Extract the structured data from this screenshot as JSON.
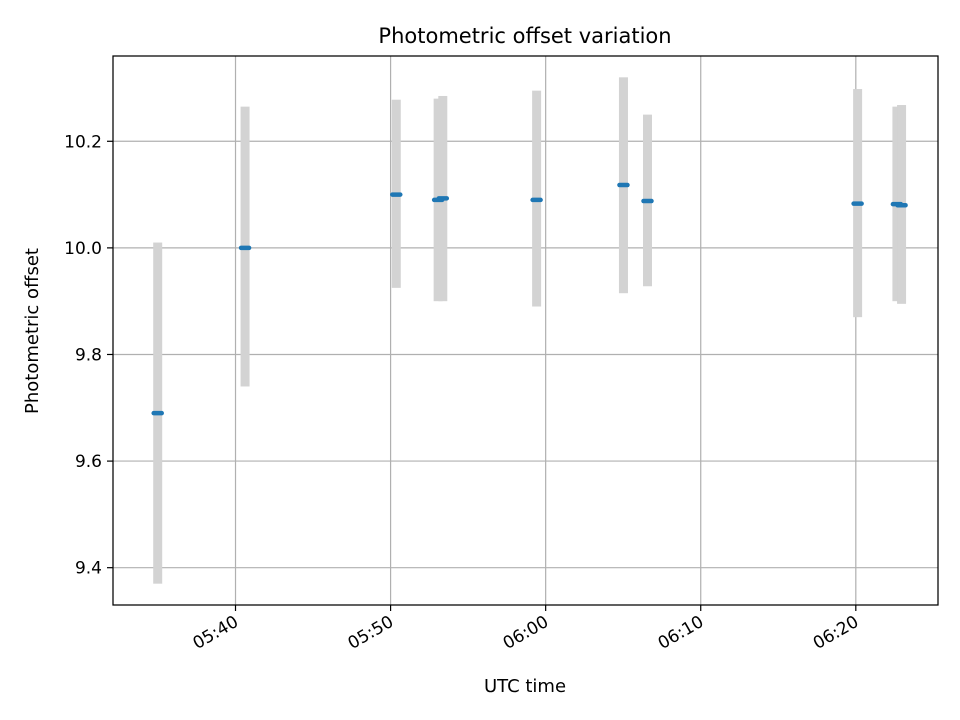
{
  "chart_data": {
    "type": "scatter",
    "title": "Photometric offset variation",
    "xlabel": "UTC time",
    "ylabel": "Photometric offset",
    "x_ticks": [
      "05:40",
      "05:50",
      "06:00",
      "06:10",
      "06:20"
    ],
    "x_tick_minutes": [
      340,
      350,
      360,
      370,
      380
    ],
    "xlim_minutes": [
      332.1,
      385.3
    ],
    "y_ticks": [
      "9.4",
      "9.6",
      "9.8",
      "10.0",
      "10.2"
    ],
    "y_tick_values": [
      9.4,
      9.6,
      9.8,
      10.0,
      10.2
    ],
    "ylim": [
      9.33,
      10.36
    ],
    "grid": true,
    "colors": {
      "point": "#1f77b4",
      "errorbar": "#d3d3d3",
      "grid": "#b0b0b0"
    },
    "series": [
      {
        "points": [
          {
            "time": "05:34:59",
            "y": 9.69,
            "low": 9.37,
            "high": 10.01
          },
          {
            "time": "05:40:37",
            "y": 10.0,
            "low": 9.74,
            "high": 10.265
          },
          {
            "time": "05:50:22",
            "y": 10.1,
            "low": 9.925,
            "high": 10.278
          },
          {
            "time": "05:53:04",
            "y": 10.09,
            "low": 9.9,
            "high": 10.28
          },
          {
            "time": "05:53:22",
            "y": 10.093,
            "low": 9.9,
            "high": 10.285
          },
          {
            "time": "05:59:25",
            "y": 10.09,
            "low": 9.89,
            "high": 10.295
          },
          {
            "time": "06:05:01",
            "y": 10.118,
            "low": 9.915,
            "high": 10.32
          },
          {
            "time": "06:06:34",
            "y": 10.088,
            "low": 9.928,
            "high": 10.25
          },
          {
            "time": "06:20:07",
            "y": 10.083,
            "low": 9.87,
            "high": 10.298
          },
          {
            "time": "06:22:39",
            "y": 10.082,
            "low": 9.9,
            "high": 10.265
          },
          {
            "time": "06:22:57",
            "y": 10.08,
            "low": 9.895,
            "high": 10.268
          }
        ]
      }
    ]
  }
}
